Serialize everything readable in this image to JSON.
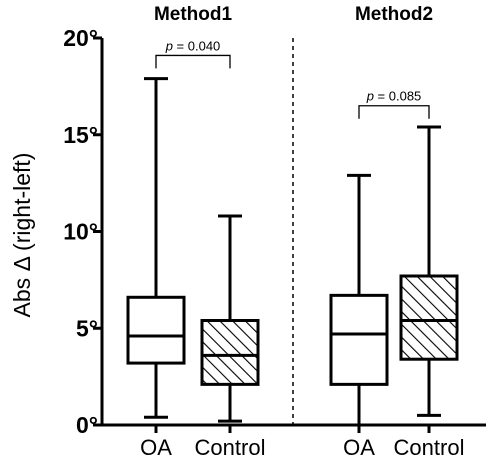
{
  "chart_data": {
    "type": "box",
    "ylabel": "Abs Δ (right-left)",
    "ylim": [
      0,
      20
    ],
    "yticks": [
      0,
      5,
      10,
      15,
      20
    ],
    "ytick_labels": [
      "0°",
      "5°",
      "10°",
      "15°",
      "20°"
    ],
    "grid": false,
    "groups": [
      {
        "title": "Method1",
        "boxes": [
          {
            "label": "OA",
            "min": 0.4,
            "q1": 3.2,
            "median": 4.6,
            "q3": 6.6,
            "max": 17.9,
            "hatched": false
          },
          {
            "label": "Control",
            "min": 0.2,
            "q1": 2.1,
            "median": 3.6,
            "q3": 5.4,
            "max": 10.8,
            "hatched": true
          }
        ],
        "pvalue": {
          "prefix": "p",
          "text": " = 0.040",
          "y": 19.1
        }
      },
      {
        "title": "Method2",
        "boxes": [
          {
            "label": "OA",
            "min": 0.0,
            "q1": 2.1,
            "median": 4.7,
            "q3": 6.7,
            "max": 12.9,
            "hatched": false
          },
          {
            "label": "Control",
            "min": 0.5,
            "q1": 3.4,
            "median": 5.4,
            "q3": 7.7,
            "max": 15.4,
            "hatched": true
          }
        ],
        "pvalue": {
          "prefix": "p",
          "text": " = 0.085",
          "y": 16.5
        }
      }
    ]
  }
}
